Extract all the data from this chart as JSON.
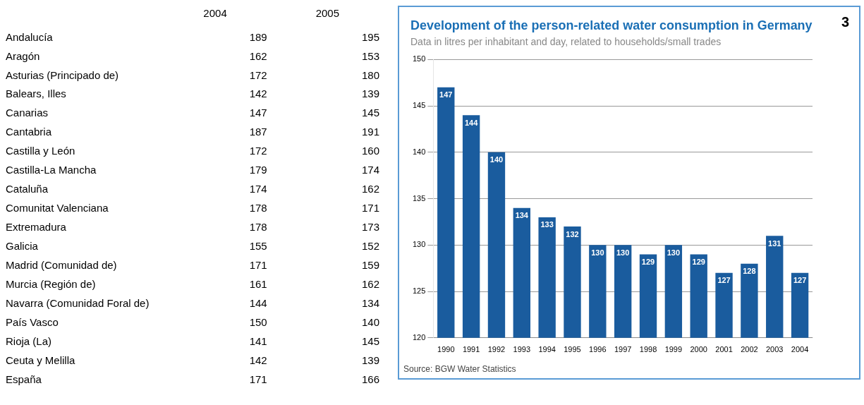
{
  "chart_data": [
    {
      "type": "heatmap",
      "data_labels": true,
      "categories": [
        "2004",
        "2005"
      ],
      "y_categories": [
        "Andalucía",
        "Aragón",
        "Asturias (Principado de)",
        "Balears, Illes",
        "Canarias",
        "Cantabria",
        "Castilla y León",
        "Castilla-La Mancha",
        "Cataluña",
        "Comunitat Valenciana",
        "Extremadura",
        "Galicia",
        "Madrid (Comunidad de)",
        "Murcia (Región de)",
        "Navarra (Comunidad Foral de)",
        "País Vasco",
        "Rioja (La)",
        "Ceuta y Melilla",
        "España"
      ],
      "cells": [
        [
          189,
          195
        ],
        [
          162,
          153
        ],
        [
          172,
          180
        ],
        [
          142,
          139
        ],
        [
          147,
          145
        ],
        [
          187,
          191
        ],
        [
          172,
          160
        ],
        [
          179,
          174
        ],
        [
          174,
          162
        ],
        [
          178,
          171
        ],
        [
          178,
          173
        ],
        [
          155,
          152
        ],
        [
          171,
          159
        ],
        [
          161,
          162
        ],
        [
          144,
          134
        ],
        [
          150,
          140
        ],
        [
          141,
          145
        ],
        [
          142,
          139
        ],
        [
          171,
          166
        ]
      ]
    },
    {
      "type": "bar",
      "title": "Development of the person-related water consumption in Germany",
      "subtitle": "Data in litres per inhabitant and day, related to households/small trades",
      "categories": [
        "1990",
        "1991",
        "1992",
        "1993",
        "1994",
        "1995",
        "1996",
        "1997",
        "1998",
        "1999",
        "2000",
        "2001",
        "2002",
        "2003",
        "2004"
      ],
      "values": [
        147,
        144,
        140,
        134,
        133,
        132,
        130,
        130,
        129,
        130,
        129,
        127,
        128,
        131,
        127
      ],
      "color": "#1a5c9e",
      "ylim": [
        120,
        150
      ],
      "yticks": [
        120,
        125,
        130,
        135,
        140,
        145,
        150
      ],
      "grid": "y",
      "data_labels": true,
      "annotations": [
        "3",
        "Source: BGW Water Statistics"
      ]
    }
  ]
}
